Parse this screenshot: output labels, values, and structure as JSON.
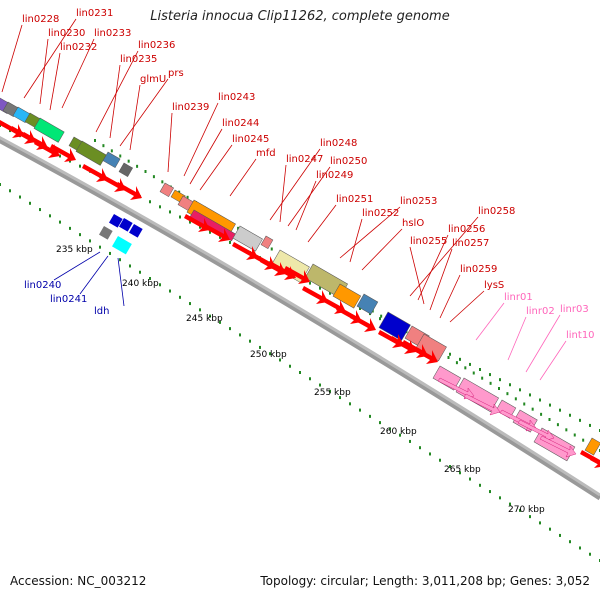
{
  "header": {
    "title": "Listeria innocua Clip11262, complete genome"
  },
  "footer": {
    "accession": "Accession: NC_003212",
    "summary": "Topology: circular; Length: 3,011,208 bp; Genes: 3,052"
  },
  "colors": {
    "red": "#ff0000",
    "blue": "#0000cc",
    "pink": "#ff99cc",
    "label_red": "#cc0000",
    "label_blue": "#0000aa",
    "label_pink": "#ff66bb",
    "tick_green": "#228822"
  },
  "scale_labels": [
    "235 kbp",
    "240 kbp",
    "245 kbp",
    "250 kbp",
    "255 kbp",
    "260 kbp",
    "265 kbp",
    "270 kbp"
  ],
  "gene_labels_red": [
    "lin0228",
    "lin0231",
    "lin0230",
    "lin0233",
    "lin0232",
    "lin0236",
    "lin0235",
    "prs",
    "glmU",
    "lin0239",
    "lin0243",
    "lin0244",
    "lin0245",
    "mfd",
    "lin0248",
    "lin0247",
    "lin0250",
    "lin0249",
    "lin0251",
    "lin0253",
    "lin0252",
    "hslO",
    "lin0258",
    "lin0256",
    "lin0255",
    "lin0257",
    "lin0259",
    "lysS"
  ],
  "gene_labels_blue": [
    "lin0240",
    "lin0241",
    "ldh"
  ],
  "gene_labels_pink": [
    "linr01",
    "linr02",
    "linr03",
    "lint10"
  ]
}
